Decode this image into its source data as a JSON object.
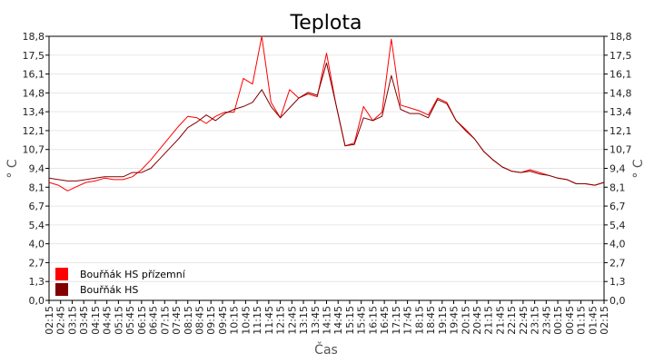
{
  "chart_data": {
    "type": "line",
    "title": "Teplota",
    "xlabel": "Čas",
    "ylabel": "° C",
    "ylim": [
      0,
      18.8
    ],
    "y_ticks": [
      "0,0",
      "1,3",
      "2,7",
      "4,0",
      "5,4",
      "6,7",
      "8,1",
      "9,4",
      "10,7",
      "12,1",
      "13,4",
      "14,8",
      "16,1",
      "17,5",
      "18,8"
    ],
    "x_ticks": [
      "02:15",
      "02:45",
      "03:15",
      "03:45",
      "04:15",
      "04:45",
      "05:15",
      "05:45",
      "06:15",
      "06:45",
      "07:15",
      "07:45",
      "08:15",
      "08:45",
      "09:15",
      "09:45",
      "10:15",
      "10:45",
      "11:15",
      "11:45",
      "12:15",
      "12:45",
      "13:15",
      "13:45",
      "14:15",
      "14:45",
      "15:15",
      "15:45",
      "16:15",
      "16:45",
      "17:15",
      "17:45",
      "18:15",
      "18:45",
      "19:15",
      "19:45",
      "20:15",
      "20:45",
      "21:15",
      "21:45",
      "22:15",
      "22:45",
      "23:15",
      "23:45",
      "00:15",
      "00:45",
      "01:15",
      "01:45",
      "02:15"
    ],
    "grid": true,
    "legend_position": "bottom-left",
    "series": [
      {
        "name": "Bouřňák HS přízemní",
        "color": "#ff0000",
        "values": [
          8.4,
          8.2,
          7.8,
          8.1,
          8.4,
          8.5,
          8.7,
          8.6,
          8.6,
          8.8,
          9.3,
          10.0,
          10.8,
          11.6,
          12.4,
          13.1,
          13.0,
          12.6,
          13.1,
          13.4,
          13.4,
          15.8,
          15.4,
          18.8,
          14.1,
          13.0,
          15.0,
          14.4,
          14.7,
          14.5,
          17.6,
          14.0,
          11.0,
          11.2,
          13.8,
          12.8,
          13.4,
          18.6,
          13.9,
          13.7,
          13.5,
          13.2,
          14.4,
          14.1,
          12.8,
          12.2,
          11.5,
          10.6,
          10.0,
          9.5,
          9.2,
          9.1,
          9.3,
          9.1,
          8.9,
          8.7,
          8.6,
          8.3,
          8.3,
          8.2,
          8.4
        ]
      },
      {
        "name": "Bouřňák HS",
        "color": "#800000",
        "values": [
          8.7,
          8.6,
          8.5,
          8.5,
          8.6,
          8.7,
          8.8,
          8.8,
          8.8,
          9.1,
          9.1,
          9.4,
          10.1,
          10.8,
          11.5,
          12.3,
          12.7,
          13.2,
          12.8,
          13.3,
          13.6,
          13.8,
          14.1,
          15.0,
          13.8,
          13.0,
          13.7,
          14.4,
          14.8,
          14.6,
          16.9,
          14.0,
          11.0,
          11.1,
          13.0,
          12.8,
          13.1,
          16.0,
          13.6,
          13.3,
          13.3,
          13.0,
          14.3,
          14.0,
          12.8,
          12.1,
          11.5,
          10.6,
          10.0,
          9.5,
          9.2,
          9.1,
          9.2,
          9.0,
          8.9,
          8.7,
          8.6,
          8.3,
          8.3,
          8.2,
          8.4
        ]
      }
    ]
  }
}
